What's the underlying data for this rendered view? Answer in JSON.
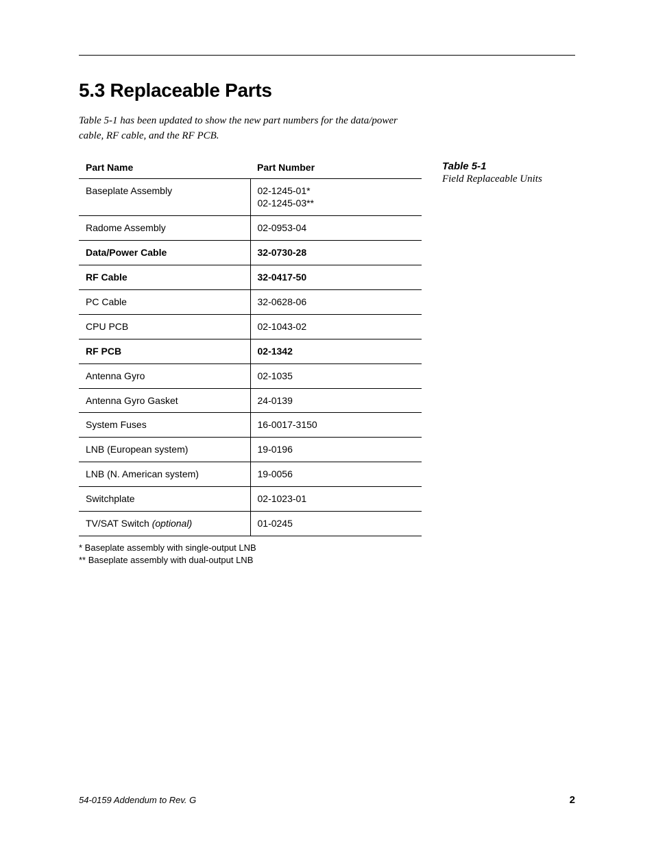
{
  "section_heading": "5.3    Replaceable Parts",
  "intro_text": "Table 5-1 has been updated to show the new part numbers for the data/power cable, RF cable, and the RF PCB.",
  "table": {
    "columns": [
      "Part Name",
      "Part Number"
    ],
    "rows": [
      {
        "name": "Baseplate Assembly",
        "number": "02-1245-01*\n02-1245-03**",
        "bold": false
      },
      {
        "name": "Radome Assembly",
        "number": "02-0953-04",
        "bold": false
      },
      {
        "name": "Data/Power Cable",
        "number": "32-0730-28",
        "bold": true
      },
      {
        "name": "RF Cable",
        "number": "32-0417-50",
        "bold": true
      },
      {
        "name": "PC Cable",
        "number": "32-0628-06",
        "bold": false
      },
      {
        "name": "CPU PCB",
        "number": "02-1043-02",
        "bold": false
      },
      {
        "name": "RF PCB",
        "number": "02-1342",
        "bold": true
      },
      {
        "name": "Antenna Gyro",
        "number": "02-1035",
        "bold": false
      },
      {
        "name": "Antenna Gyro Gasket",
        "number": "24-0139",
        "bold": false
      },
      {
        "name": "System Fuses",
        "number": "16-0017-3150",
        "bold": false
      },
      {
        "name": "LNB (European system)",
        "number": "19-0196",
        "bold": false
      },
      {
        "name": "LNB (N. American system)",
        "number": "19-0056",
        "bold": false
      },
      {
        "name": "Switchplate",
        "number": "02-1023-01",
        "bold": false
      },
      {
        "name": "TV/SAT Switch ",
        "name_italic_suffix": "(optional)",
        "number": "01-0245",
        "bold": false
      }
    ]
  },
  "caption": {
    "title": "Table 5-1",
    "subtitle": "Field Replaceable Units"
  },
  "footnotes": [
    "* Baseplate assembly with single-output LNB",
    "** Baseplate assembly with dual-output LNB"
  ],
  "footer": {
    "left": "54-0159 Addendum to Rev. G",
    "page_number": "2"
  },
  "colors": {
    "text": "#000000",
    "background": "#ffffff",
    "border": "#000000"
  },
  "typography": {
    "heading_fontsize": 28,
    "heading_weight": 900,
    "body_fontsize": 14,
    "intro_fontsize": 15,
    "footnote_fontsize": 13,
    "caption_title_fontsize": 15,
    "footer_fontsize": 13
  }
}
